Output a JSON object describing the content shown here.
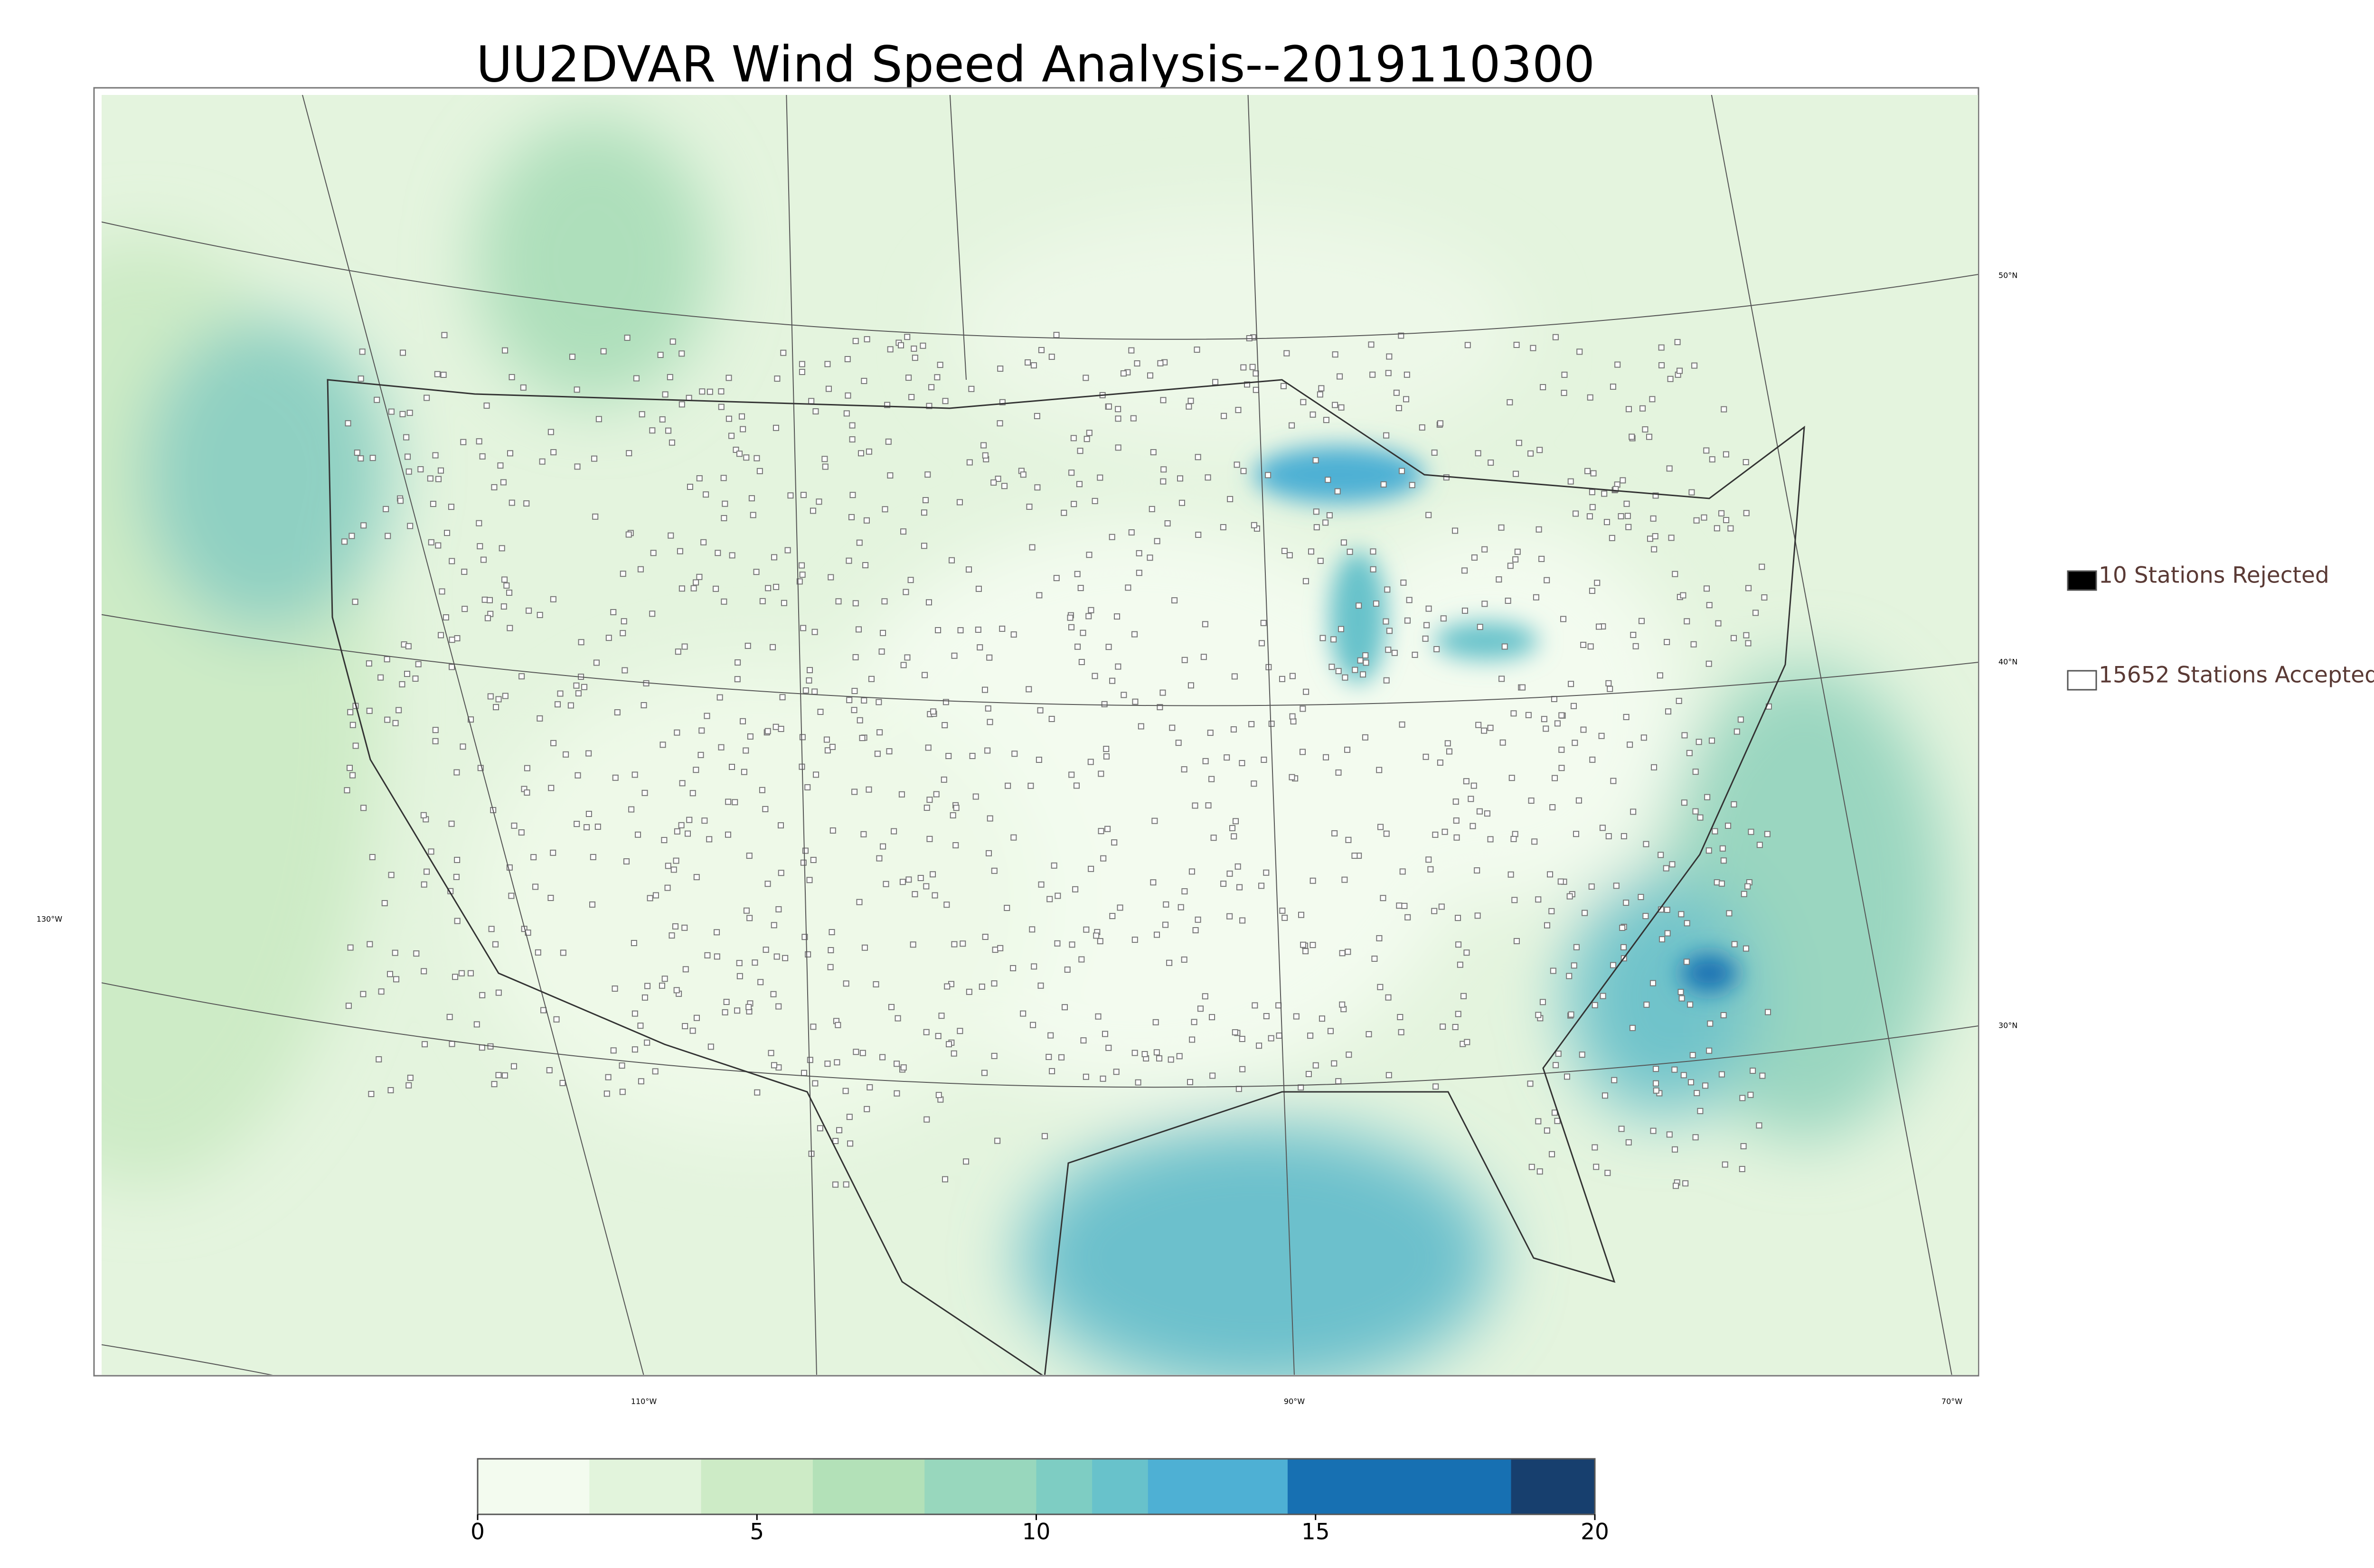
{
  "title": "UU2DVAR Wind Speed Analysis--2019110300",
  "map": {
    "latitude_labels": [
      "50°N",
      "40°N",
      "30°N"
    ],
    "longitude_labels": [
      "130°W",
      "110°W",
      "90°W",
      "70°W"
    ]
  },
  "legend": [
    {
      "label": "10 Stations Rejected",
      "fill": "#000000"
    },
    {
      "label": "15652 Stations Accepted",
      "fill": "#ffffff"
    }
  ],
  "colorbar": {
    "lim": [
      0,
      20
    ],
    "ticks": [
      0,
      5,
      10,
      15,
      20
    ],
    "bounds": [
      0,
      2,
      4,
      6,
      8,
      10,
      11,
      12,
      14.5,
      18.5,
      20
    ],
    "colors": [
      "#f3fbef",
      "#e2f4dc",
      "#cdebc6",
      "#b3e1b8",
      "#98d7bd",
      "#7ecdc3",
      "#68c2cb",
      "#4eb0d4",
      "#1770b2",
      "#173f6e"
    ]
  }
}
